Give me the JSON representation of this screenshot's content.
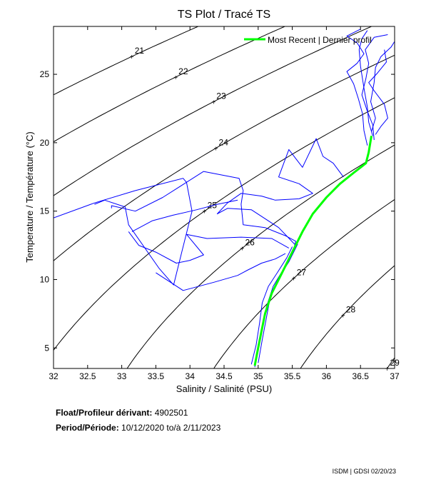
{
  "chart_data": {
    "type": "line",
    "title": "TS Plot / Tracé TS",
    "xlabel": "Salinity / Salinité (PSU)",
    "ylabel": "Temperature / Température (°C)",
    "xlim": [
      32,
      37
    ],
    "ylim": [
      3.5,
      28.5
    ],
    "xticks": [
      "32",
      "32.5",
      "33",
      "33.5",
      "34",
      "34.5",
      "35",
      "35.5",
      "36",
      "36.5",
      "37"
    ],
    "yticks": [
      "5",
      "10",
      "15",
      "20",
      "25"
    ],
    "grid": false,
    "legend": {
      "placement": "top-right",
      "label": "Most Recent | Dernier profil",
      "color": "#00ff00"
    },
    "isopycnal_labels": [
      "21",
      "22",
      "23",
      "24",
      "25",
      "26",
      "27",
      "28",
      "29"
    ],
    "series": [
      {
        "name": "Most Recent | Dernier profil",
        "color": "#00ff00",
        "points": [
          [
            34.95,
            3.7
          ],
          [
            34.98,
            4.5
          ],
          [
            35.04,
            6.0
          ],
          [
            35.1,
            7.5
          ],
          [
            35.2,
            9.0
          ],
          [
            35.35,
            10.5
          ],
          [
            35.5,
            12.0
          ],
          [
            35.65,
            13.5
          ],
          [
            35.8,
            14.8
          ],
          [
            36.0,
            16.0
          ],
          [
            36.2,
            17.0
          ],
          [
            36.4,
            17.8
          ],
          [
            36.58,
            18.5
          ],
          [
            36.62,
            19.3
          ],
          [
            36.66,
            20.5
          ]
        ]
      },
      {
        "name": "",
        "color": "#0000ff",
        "points": [
          [
            34.95,
            3.6
          ],
          [
            35.0,
            5.0
          ],
          [
            35.06,
            6.5
          ],
          [
            35.12,
            8.0
          ],
          [
            35.22,
            9.5
          ],
          [
            35.4,
            11.0
          ],
          [
            35.52,
            12.2
          ],
          [
            35.55,
            12.8
          ],
          [
            35.4,
            13.2
          ],
          [
            35.1,
            13.8
          ],
          [
            34.78,
            14.0
          ],
          [
            34.75,
            15.5
          ],
          [
            34.78,
            16.5
          ],
          [
            34.72,
            17.4
          ],
          [
            34.2,
            17.9
          ],
          [
            33.6,
            16.0
          ],
          [
            33.2,
            15.0
          ],
          [
            32.85,
            15.4
          ],
          [
            32.85,
            15.2
          ]
        ]
      },
      {
        "name": "",
        "color": "#0000ff",
        "points": [
          [
            32.0,
            14.5
          ],
          [
            32.6,
            15.6
          ],
          [
            33.2,
            16.5
          ],
          [
            33.9,
            17.4
          ],
          [
            33.95,
            17.1
          ],
          [
            34.03,
            15.0
          ],
          [
            33.88,
            12.0
          ],
          [
            33.76,
            9.6
          ],
          [
            33.55,
            10.8
          ],
          [
            33.1,
            14.0
          ],
          [
            33.05,
            15.3
          ],
          [
            32.75,
            15.8
          ],
          [
            32.6,
            15.5
          ]
        ]
      },
      {
        "name": "",
        "color": "#0000ff",
        "points": [
          [
            35.55,
            12.5
          ],
          [
            35.3,
            13.8
          ],
          [
            34.9,
            15.1
          ],
          [
            34.55,
            15.2
          ],
          [
            34.4,
            14.8
          ],
          [
            34.55,
            15.6
          ],
          [
            34.75,
            16.3
          ],
          [
            35.05,
            16.1
          ],
          [
            35.25,
            15.8
          ],
          [
            35.6,
            15.9
          ],
          [
            35.8,
            16.3
          ],
          [
            35.6,
            17.0
          ],
          [
            35.3,
            17.5
          ],
          [
            35.45,
            19.5
          ],
          [
            35.65,
            18.2
          ],
          [
            35.85,
            20.3
          ],
          [
            35.95,
            19.0
          ],
          [
            36.1,
            18.5
          ],
          [
            36.25,
            17.5
          ]
        ]
      },
      {
        "name": "",
        "color": "#0000ff",
        "points": [
          [
            35.45,
            12.3
          ],
          [
            35.2,
            13.0
          ],
          [
            34.75,
            13.1
          ],
          [
            34.25,
            13.0
          ],
          [
            33.95,
            13.3
          ],
          [
            34.2,
            11.8
          ],
          [
            34.0,
            11.4
          ],
          [
            33.8,
            11.2
          ],
          [
            33.5,
            12.0
          ],
          [
            33.25,
            12.5
          ],
          [
            33.1,
            13.5
          ]
        ]
      },
      {
        "name": "",
        "color": "#0000ff",
        "points": [
          [
            33.15,
            13.5
          ],
          [
            33.45,
            14.3
          ],
          [
            33.75,
            14.7
          ],
          [
            34.1,
            15.1
          ],
          [
            34.4,
            15.5
          ],
          [
            34.7,
            15.8
          ]
        ]
      },
      {
        "name": "",
        "color": "#0000ff",
        "points": [
          [
            33.5,
            10.5
          ],
          [
            33.9,
            9.2
          ],
          [
            34.35,
            9.8
          ],
          [
            34.7,
            10.3
          ],
          [
            34.85,
            10.7
          ],
          [
            35.05,
            11.2
          ],
          [
            35.25,
            11.5
          ],
          [
            35.4,
            11.9
          ]
        ]
      },
      {
        "name": "",
        "color": "#0000ff",
        "points": [
          [
            36.68,
            20.5
          ],
          [
            36.62,
            21.5
          ],
          [
            36.6,
            22.6
          ],
          [
            36.55,
            24.0
          ],
          [
            36.5,
            25.6
          ],
          [
            36.48,
            26.8
          ],
          [
            36.52,
            27.6
          ],
          [
            36.6,
            28.2
          ]
        ]
      },
      {
        "name": "",
        "color": "#0000ff",
        "points": [
          [
            36.66,
            20.8
          ],
          [
            36.72,
            21.8
          ],
          [
            36.65,
            23.0
          ],
          [
            36.7,
            24.4
          ],
          [
            36.72,
            25.5
          ],
          [
            36.8,
            26.3
          ],
          [
            36.95,
            27.0
          ],
          [
            37.0,
            27.4
          ]
        ]
      },
      {
        "name": "",
        "color": "#0000ff",
        "points": [
          [
            36.6,
            19.8
          ],
          [
            36.55,
            20.9
          ],
          [
            36.53,
            22.1
          ],
          [
            36.47,
            23.2
          ],
          [
            36.4,
            24.3
          ],
          [
            36.3,
            25.2
          ],
          [
            36.45,
            25.8
          ],
          [
            36.55,
            26.5
          ],
          [
            36.45,
            27.3
          ],
          [
            36.3,
            27.8
          ],
          [
            36.5,
            28.3
          ]
        ]
      },
      {
        "name": "",
        "color": "#0000ff",
        "points": [
          [
            36.7,
            20.2
          ],
          [
            36.68,
            21.3
          ],
          [
            36.6,
            22.3
          ],
          [
            36.52,
            23.5
          ],
          [
            36.58,
            24.7
          ],
          [
            36.62,
            25.8
          ],
          [
            36.57,
            26.8
          ],
          [
            36.7,
            27.7
          ],
          [
            36.9,
            27.9
          ]
        ]
      },
      {
        "name": "",
        "color": "#0000ff",
        "points": [
          [
            36.72,
            20.6
          ],
          [
            36.8,
            21.2
          ],
          [
            36.9,
            21.8
          ],
          [
            36.85,
            22.8
          ],
          [
            36.7,
            23.8
          ],
          [
            36.62,
            24.4
          ],
          [
            36.75,
            25.1
          ],
          [
            36.88,
            25.9
          ],
          [
            36.85,
            26.8
          ]
        ]
      },
      {
        "name": "",
        "color": "#0000ff",
        "points": [
          [
            34.9,
            3.8
          ],
          [
            34.97,
            5.2
          ],
          [
            35.02,
            6.8
          ],
          [
            35.06,
            8.3
          ],
          [
            35.15,
            9.5
          ],
          [
            35.28,
            10.5
          ],
          [
            35.42,
            11.6
          ],
          [
            35.5,
            12.4
          ]
        ]
      },
      {
        "name": "",
        "color": "#0000ff",
        "points": [
          [
            35.0,
            3.9
          ],
          [
            35.06,
            5.6
          ],
          [
            35.12,
            7.2
          ],
          [
            35.18,
            8.8
          ],
          [
            35.3,
            10.1
          ],
          [
            35.45,
            11.3
          ],
          [
            35.58,
            12.6
          ]
        ]
      }
    ]
  },
  "info": {
    "float_label": "Float/Profileur dérivant:",
    "float_value": "4902501",
    "period_label": "Period/Période:",
    "period_value": "10/12/2020  to/à  2/11/2023"
  },
  "credit": "ISDM | GDSI  02/20/23"
}
